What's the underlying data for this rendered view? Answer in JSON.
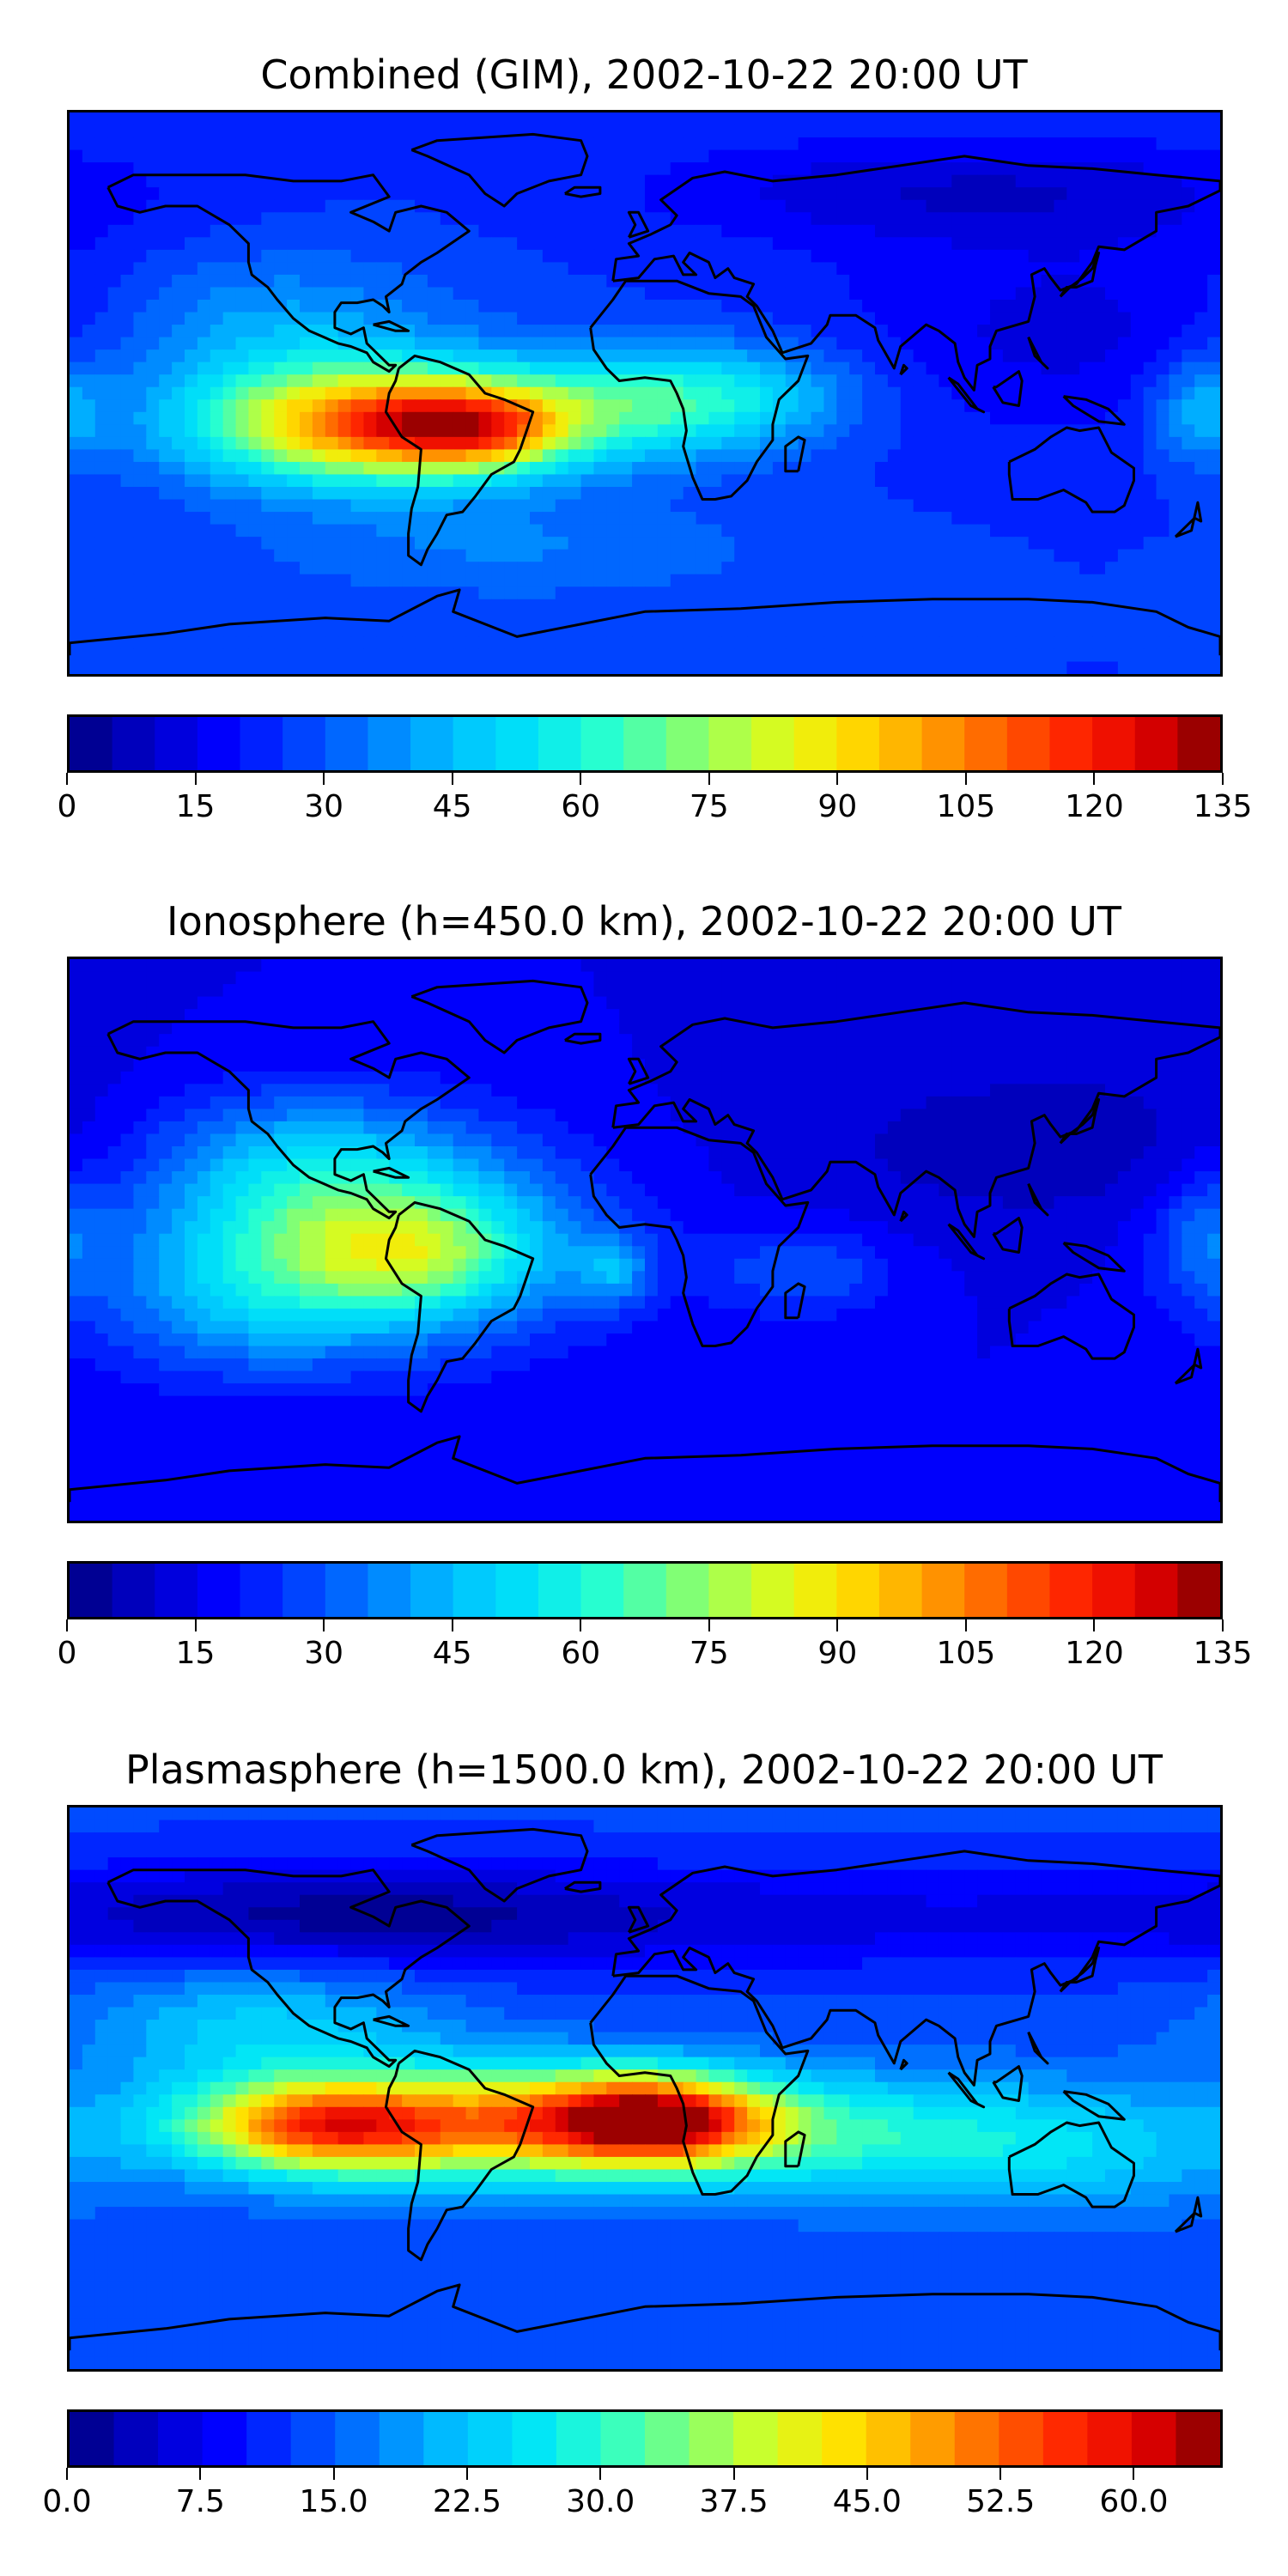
{
  "panels": [
    {
      "title": "Combined (GIM), 2002-10-22 20:00 UT",
      "colorbar": {
        "min": 0,
        "max": 135,
        "levels": 27,
        "ticks": [
          "0",
          "15",
          "30",
          "45",
          "60",
          "75",
          "90",
          "105",
          "120",
          "135"
        ],
        "tick_values": [
          0,
          15,
          30,
          45,
          60,
          75,
          90,
          105,
          120,
          135
        ]
      },
      "field": {
        "base": 25,
        "blobs": [
          {
            "lon": -90,
            "lat": -10,
            "sx": 40,
            "sy": 14,
            "amp": 60
          },
          {
            "lon": -70,
            "lat": -10,
            "sx": 28,
            "sy": 10,
            "amp": 35
          },
          {
            "lon": -50,
            "lat": -12,
            "sx": 18,
            "sy": 9,
            "amp": 30
          },
          {
            "lon": -10,
            "lat": -5,
            "sx": 35,
            "sy": 12,
            "amp": 25
          },
          {
            "lon": 25,
            "lat": 0,
            "sx": 30,
            "sy": 12,
            "amp": 22
          },
          {
            "lon": -120,
            "lat": 20,
            "sx": 40,
            "sy": 18,
            "amp": 18
          },
          {
            "lon": -40,
            "lat": -50,
            "sx": 60,
            "sy": 12,
            "amp": 10
          },
          {
            "lon": 140,
            "lat": 20,
            "sx": 60,
            "sy": 25,
            "amp": -12
          },
          {
            "lon": 175,
            "lat": -5,
            "sx": 12,
            "sy": 12,
            "amp": 20
          },
          {
            "lon": 100,
            "lat": 65,
            "sx": 70,
            "sy": 12,
            "amp": -14
          }
        ]
      }
    },
    {
      "title": "Ionosphere  (h=450.0 km), 2002-10-22 20:00 UT",
      "colorbar": {
        "min": 0,
        "max": 135,
        "levels": 27,
        "ticks": [
          "0",
          "15",
          "30",
          "45",
          "60",
          "75",
          "90",
          "105",
          "120",
          "135"
        ],
        "tick_values": [
          0,
          15,
          30,
          45,
          60,
          75,
          90,
          105,
          120,
          135
        ]
      },
      "field": {
        "base": 15,
        "blobs": [
          {
            "lon": -90,
            "lat": 0,
            "sx": 45,
            "sy": 22,
            "amp": 55
          },
          {
            "lon": -70,
            "lat": -5,
            "sx": 25,
            "sy": 12,
            "amp": 20
          },
          {
            "lon": -110,
            "lat": 30,
            "sx": 35,
            "sy": 15,
            "amp": 15
          },
          {
            "lon": -130,
            "lat": -25,
            "sx": 30,
            "sy": 15,
            "amp": 12
          },
          {
            "lon": 50,
            "lat": -10,
            "sx": 20,
            "sy": 10,
            "amp": 15
          },
          {
            "lon": -10,
            "lat": -10,
            "sx": 8,
            "sy": 8,
            "amp": 20
          },
          {
            "lon": 130,
            "lat": 30,
            "sx": 60,
            "sy": 20,
            "amp": -8
          },
          {
            "lon": 175,
            "lat": 0,
            "sx": 12,
            "sy": 15,
            "amp": 15
          }
        ]
      }
    },
    {
      "title": "Plasmasphere (h=1500.0 km), 2002-10-22 20:00 UT",
      "colorbar": {
        "min": 0,
        "max": 65,
        "levels": 26,
        "ticks": [
          "0.0",
          "7.5",
          "15.0",
          "22.5",
          "30.0",
          "37.5",
          "45.0",
          "52.5",
          "60.0"
        ],
        "tick_values": [
          0,
          7.5,
          15,
          22.5,
          30,
          37.5,
          45,
          52.5,
          60
        ]
      },
      "field": {
        "base": 13,
        "blobs": [
          {
            "lon": -100,
            "lat": -12,
            "sx": 30,
            "sy": 10,
            "amp": 30
          },
          {
            "lon": -70,
            "lat": -12,
            "sx": 50,
            "sy": 14,
            "amp": 18
          },
          {
            "lon": 5,
            "lat": -10,
            "sx": 25,
            "sy": 10,
            "amp": 38
          },
          {
            "lon": -30,
            "lat": -10,
            "sx": 30,
            "sy": 12,
            "amp": 15
          },
          {
            "lon": 60,
            "lat": -15,
            "sx": 50,
            "sy": 14,
            "amp": 15
          },
          {
            "lon": -120,
            "lat": 20,
            "sx": 40,
            "sy": 15,
            "amp": 10
          },
          {
            "lon": 140,
            "lat": -20,
            "sx": 40,
            "sy": 15,
            "amp": 8
          },
          {
            "lon": -90,
            "lat": 55,
            "sx": 80,
            "sy": 12,
            "amp": -12
          },
          {
            "lon": 80,
            "lat": 55,
            "sx": 60,
            "sy": 12,
            "amp": -5
          }
        ]
      }
    }
  ],
  "colormap": [
    "#00007f",
    "#0000c8",
    "#0000ff",
    "#0040ff",
    "#0080ff",
    "#00c0ff",
    "#00e4f8",
    "#29ffce",
    "#7dff7a",
    "#cdff29",
    "#ffe600",
    "#ffad00",
    "#ff6800",
    "#ff2800",
    "#e40000",
    "#7f0000"
  ]
}
